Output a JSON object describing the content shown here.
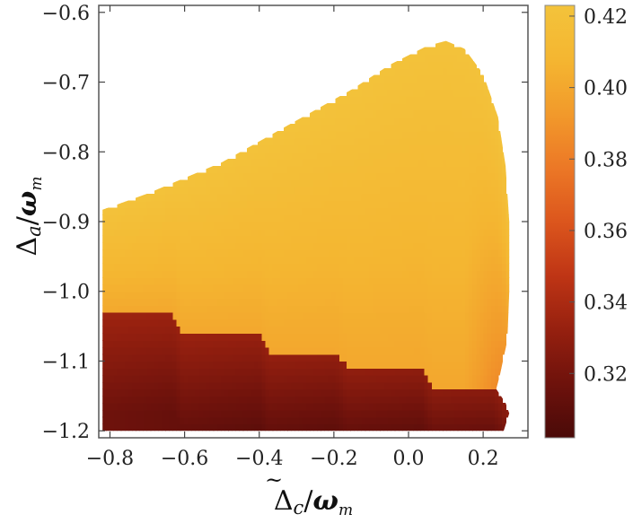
{
  "chart_data": {
    "type": "heatmap",
    "title": "",
    "xlabel": {
      "symbol": "Δ",
      "sub": "c",
      "tilde": true,
      "denominator": "ω",
      "denominator_sub": "m"
    },
    "ylabel": {
      "symbol": "Δ",
      "sub": "a",
      "denominator": "ω",
      "denominator_sub": "m"
    },
    "xlim": [
      -0.83,
      0.32
    ],
    "ylim": [
      -1.21,
      -0.59
    ],
    "x_ticks": [
      {
        "value": -0.8,
        "label": "−0.8"
      },
      {
        "value": -0.6,
        "label": "−0.6"
      },
      {
        "value": -0.4,
        "label": "−0.4"
      },
      {
        "value": -0.2,
        "label": "−0.2"
      },
      {
        "value": 0.0,
        "label": "0.0"
      },
      {
        "value": 0.2,
        "label": "0.2"
      }
    ],
    "y_ticks": [
      {
        "value": -0.6,
        "label": "−0.6"
      },
      {
        "value": -0.7,
        "label": "−0.7"
      },
      {
        "value": -0.8,
        "label": "−0.8"
      },
      {
        "value": -0.9,
        "label": "−0.9"
      },
      {
        "value": -1.0,
        "label": "−1.0"
      },
      {
        "value": -1.1,
        "label": "−1.1"
      },
      {
        "value": -1.2,
        "label": "−1.2"
      }
    ],
    "colorbar": {
      "range": [
        0.302,
        0.423
      ],
      "ticks": [
        {
          "value": 0.42,
          "label": "0.42"
        },
        {
          "value": 0.4,
          "label": "0.40"
        },
        {
          "value": 0.38,
          "label": "0.38"
        },
        {
          "value": 0.36,
          "label": "0.36"
        },
        {
          "value": 0.34,
          "label": "0.34"
        },
        {
          "value": 0.32,
          "label": "0.32"
        }
      ],
      "colormap": [
        "#4a0a08",
        "#6e120c",
        "#96200f",
        "#bf3515",
        "#dc561d",
        "#ec7826",
        "#f29a2b",
        "#f4b631",
        "#f3c33b"
      ]
    },
    "region_boundary": [
      [
        -0.82,
        -1.2
      ],
      [
        -0.82,
        -0.883
      ],
      [
        -0.7,
        -0.86
      ],
      [
        -0.5,
        -0.815
      ],
      [
        -0.3,
        -0.755
      ],
      [
        -0.15,
        -0.71
      ],
      [
        -0.05,
        -0.675
      ],
      [
        0.05,
        -0.648
      ],
      [
        0.1,
        -0.641
      ],
      [
        0.15,
        -0.652
      ],
      [
        0.2,
        -0.688
      ],
      [
        0.24,
        -0.75
      ],
      [
        0.26,
        -0.82
      ],
      [
        0.27,
        -0.9
      ],
      [
        0.27,
        -1.0
      ],
      [
        0.265,
        -1.07
      ],
      [
        0.245,
        -1.12
      ],
      [
        0.235,
        -1.14
      ],
      [
        0.26,
        -1.16
      ],
      [
        0.27,
        -1.175
      ],
      [
        0.255,
        -1.2
      ]
    ],
    "lower_region_boundary": [
      [
        -0.82,
        -1.2
      ],
      [
        -0.82,
        -1.033
      ],
      [
        -0.63,
        -1.033
      ],
      [
        -0.605,
        -1.06
      ],
      [
        -0.4,
        -1.06
      ],
      [
        -0.375,
        -1.085
      ],
      [
        -0.195,
        -1.085
      ],
      [
        -0.165,
        -1.108
      ],
      [
        0.035,
        -1.108
      ],
      [
        0.065,
        -1.135
      ],
      [
        0.225,
        -1.135
      ],
      [
        0.245,
        -1.15
      ],
      [
        0.27,
        -1.175
      ],
      [
        0.255,
        -1.2
      ]
    ],
    "field": {
      "upper_value_at_top": 0.422,
      "upper_value_at_lower_edge": 0.4,
      "upper_edge_right_value": 0.385,
      "lower_value_at_top": 0.335,
      "lower_value_at_bottom_right": 0.303
    }
  }
}
